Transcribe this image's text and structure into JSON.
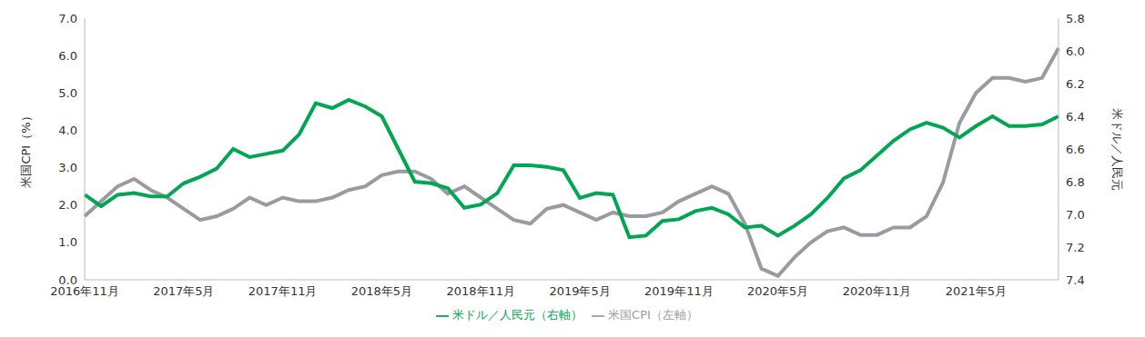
{
  "chart_data": {
    "type": "line",
    "y_label": "米国CPI（%）",
    "y2_label": "米ドル／人民元",
    "categories": [
      "2016年11月",
      null,
      null,
      null,
      null,
      null,
      "2017年5月",
      null,
      null,
      null,
      null,
      null,
      "2017年11月",
      null,
      null,
      null,
      null,
      null,
      "2018年5月",
      null,
      null,
      null,
      null,
      null,
      "2018年11月",
      null,
      null,
      null,
      null,
      null,
      "2019年5月",
      null,
      null,
      null,
      null,
      null,
      "2019年11月",
      null,
      null,
      null,
      null,
      null,
      "2020年5月",
      null,
      null,
      null,
      null,
      null,
      "2020年11月",
      null,
      null,
      null,
      null,
      null,
      "2021年5月",
      null,
      null,
      null,
      null,
      null
    ],
    "series": [
      {
        "name": "米国CPI（左軸）",
        "color": "#9b9aa3",
        "axis": "y",
        "values": [
          1.7,
          2.1,
          2.5,
          2.7,
          2.4,
          2.2,
          1.9,
          1.6,
          1.7,
          1.9,
          2.2,
          2.0,
          2.2,
          2.1,
          2.1,
          2.2,
          2.4,
          2.5,
          2.8,
          2.9,
          2.9,
          2.7,
          2.3,
          2.5,
          2.2,
          1.9,
          1.6,
          1.5,
          1.9,
          2.0,
          1.8,
          1.6,
          1.8,
          1.7,
          1.7,
          1.8,
          2.1,
          2.3,
          2.5,
          2.3,
          1.5,
          0.3,
          0.1,
          0.6,
          1.0,
          1.3,
          1.4,
          1.2,
          1.2,
          1.4,
          1.4,
          1.7,
          2.6,
          4.2,
          5.0,
          5.4,
          5.4,
          5.3,
          5.4,
          6.2
        ]
      },
      {
        "name": "米ドル／人民元（右軸）",
        "color": "#00a651",
        "axis": "y2",
        "values": [
          6.88,
          6.95,
          6.88,
          6.87,
          6.89,
          6.89,
          6.81,
          6.77,
          6.72,
          6.6,
          6.65,
          6.63,
          6.61,
          6.51,
          6.32,
          6.35,
          6.3,
          6.34,
          6.4,
          6.6,
          6.8,
          6.81,
          6.84,
          6.96,
          6.94,
          6.87,
          6.7,
          6.7,
          6.71,
          6.73,
          6.9,
          6.87,
          6.88,
          7.14,
          7.13,
          7.04,
          7.03,
          6.98,
          6.96,
          7.0,
          7.08,
          7.07,
          7.13,
          7.07,
          7.0,
          6.9,
          6.78,
          6.73,
          6.64,
          6.55,
          6.48,
          6.44,
          6.47,
          6.53,
          6.46,
          6.4,
          6.46,
          6.46,
          6.45,
          6.4
        ]
      }
    ],
    "ylim": [
      0,
      7
    ],
    "yticks": [
      {
        "value": 0,
        "label": "0.0"
      },
      {
        "value": 1,
        "label": "1.0"
      },
      {
        "value": 2,
        "label": "2.0"
      },
      {
        "value": 3,
        "label": "3.0"
      },
      {
        "value": 4,
        "label": "4.0"
      },
      {
        "value": 5,
        "label": "5.0"
      },
      {
        "value": 6,
        "label": "6.0"
      },
      {
        "value": 7,
        "label": "7.0"
      }
    ],
    "y2lim": [
      7.4,
      5.8
    ],
    "y2ticks": [
      5.8,
      {
        "value": 6,
        "label": "6.0"
      },
      6.2,
      6.4,
      6.6,
      6.8,
      {
        "value": 7,
        "label": "7.0"
      },
      7.2,
      7.4
    ],
    "grid": false,
    "legend": "bottom"
  }
}
